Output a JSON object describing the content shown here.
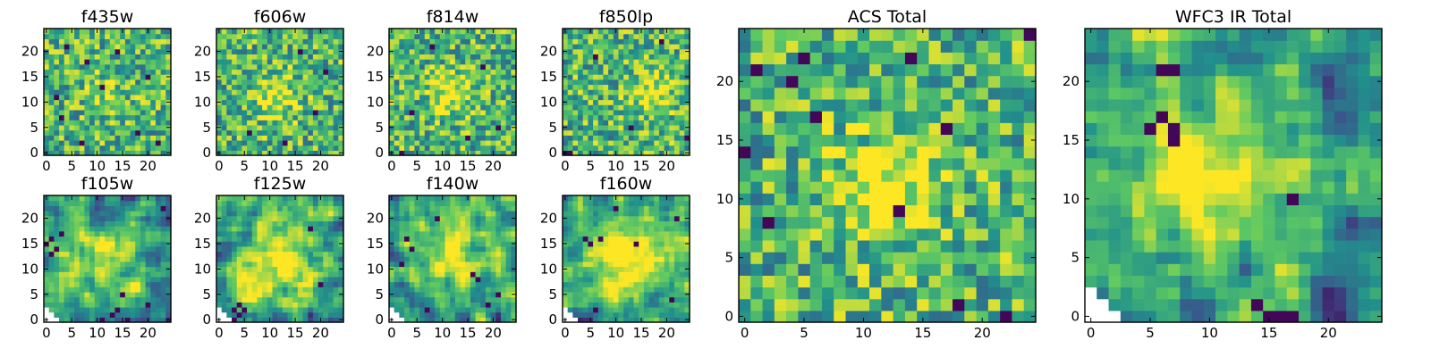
{
  "figure": {
    "description_type": "grid of heatmap image cutouts per filter",
    "colormap": [
      "#440154",
      "#3b528b",
      "#21918c",
      "#5ec962",
      "#fde725"
    ],
    "background": "#ffffff"
  },
  "chart_data": [
    {
      "type": "heatmap",
      "title": "f435w",
      "grid_size": 25,
      "xlim": [
        0,
        24
      ],
      "ylim": [
        0,
        24
      ],
      "xticks": [
        0,
        5,
        10,
        15,
        20
      ],
      "yticks": [
        0,
        5,
        10,
        15,
        20
      ],
      "pattern": "noise",
      "hotspot": [
        12,
        12,
        3
      ],
      "hotspot_strength": 0.15,
      "dark_pixels": [
        [
          8,
          18
        ],
        [
          11,
          13
        ],
        [
          4,
          21
        ],
        [
          3,
          7
        ],
        [
          18,
          4
        ],
        [
          20,
          15
        ],
        [
          14,
          20
        ],
        [
          2,
          11
        ],
        [
          22,
          2
        ],
        [
          7,
          2
        ]
      ],
      "blank_corner": false,
      "seed": 11
    },
    {
      "type": "heatmap",
      "title": "f606w",
      "grid_size": 25,
      "xlim": [
        0,
        24
      ],
      "ylim": [
        0,
        24
      ],
      "xticks": [
        0,
        5,
        10,
        15,
        20
      ],
      "yticks": [
        0,
        5,
        10,
        15,
        20
      ],
      "pattern": "noise",
      "hotspot": [
        11,
        11,
        3
      ],
      "hotspot_strength": 0.35,
      "dark_pixels": [
        [
          16,
          20
        ],
        [
          19,
          8
        ],
        [
          6,
          4
        ],
        [
          21,
          16
        ],
        [
          13,
          2
        ]
      ],
      "blank_corner": false,
      "seed": 23
    },
    {
      "type": "heatmap",
      "title": "f814w",
      "grid_size": 25,
      "xlim": [
        0,
        24
      ],
      "ylim": [
        0,
        24
      ],
      "xticks": [
        0,
        5,
        10,
        15,
        20
      ],
      "yticks": [
        0,
        5,
        10,
        15,
        20
      ],
      "pattern": "noise",
      "hotspot": [
        12,
        12,
        3
      ],
      "hotspot_strength": 0.35,
      "dark_pixels": [
        [
          18,
          17
        ],
        [
          4,
          8
        ],
        [
          21,
          5
        ],
        [
          8,
          21
        ],
        [
          2,
          0
        ],
        [
          15,
          3
        ]
      ],
      "blank_corner": false,
      "seed": 37
    },
    {
      "type": "heatmap",
      "title": "f850lp",
      "grid_size": 25,
      "xlim": [
        0,
        24
      ],
      "ylim": [
        0,
        24
      ],
      "xticks": [
        0,
        5,
        10,
        15,
        20
      ],
      "yticks": [
        0,
        5,
        10,
        15,
        20
      ],
      "pattern": "noise",
      "hotspot": [
        17,
        12,
        3
      ],
      "hotspot_strength": 0.35,
      "dark_pixels": [
        [
          0,
          0
        ],
        [
          1,
          0
        ],
        [
          24,
          3
        ],
        [
          6,
          19
        ],
        [
          13,
          5
        ],
        [
          19,
          22
        ]
      ],
      "blank_corner": false,
      "seed": 41
    },
    {
      "type": "heatmap",
      "title": "f105w",
      "grid_size": 25,
      "xlim": [
        0,
        24
      ],
      "ylim": [
        0,
        24
      ],
      "xticks": [
        0,
        5,
        10,
        15,
        20
      ],
      "yticks": [
        0,
        5,
        10,
        15,
        20
      ],
      "pattern": "smooth",
      "hotspot": [
        12,
        12,
        5
      ],
      "hotspot_strength": 0.3,
      "dark_pixels": [
        [
          0,
          15
        ],
        [
          1,
          16
        ],
        [
          2,
          14
        ],
        [
          1,
          13
        ],
        [
          3,
          17
        ],
        [
          13,
          1
        ],
        [
          14,
          2
        ],
        [
          16,
          0
        ],
        [
          11,
          0
        ],
        [
          15,
          5
        ],
        [
          20,
          3
        ],
        [
          23,
          22
        ]
      ],
      "blank_corner": true,
      "seed": 53
    },
    {
      "type": "heatmap",
      "title": "f125w",
      "grid_size": 25,
      "xlim": [
        0,
        24
      ],
      "ylim": [
        0,
        24
      ],
      "xticks": [
        0,
        5,
        10,
        15,
        20
      ],
      "yticks": [
        0,
        5,
        10,
        15,
        20
      ],
      "pattern": "smooth",
      "hotspot": [
        11,
        12,
        6
      ],
      "hotspot_strength": 0.45,
      "dark_pixels": [
        [
          3,
          2
        ],
        [
          4,
          1
        ],
        [
          5,
          2
        ],
        [
          4,
          3
        ],
        [
          3,
          0
        ],
        [
          20,
          7
        ],
        [
          18,
          18
        ]
      ],
      "blank_corner": true,
      "seed": 67
    },
    {
      "type": "heatmap",
      "title": "f140w",
      "grid_size": 25,
      "xlim": [
        0,
        24
      ],
      "ylim": [
        0,
        24
      ],
      "xticks": [
        0,
        5,
        10,
        15,
        20
      ],
      "yticks": [
        0,
        5,
        10,
        15,
        20
      ],
      "pattern": "smooth",
      "hotspot": [
        12,
        13,
        5
      ],
      "hotspot_strength": 0.45,
      "dark_pixels": [
        [
          3,
          16
        ],
        [
          4,
          14
        ],
        [
          2,
          11
        ],
        [
          7,
          2
        ],
        [
          16,
          9
        ],
        [
          17,
          8
        ],
        [
          21,
          5
        ],
        [
          9,
          20
        ],
        [
          19,
          3
        ]
      ],
      "blank_corner": true,
      "seed": 79
    },
    {
      "type": "heatmap",
      "title": "f160w",
      "grid_size": 25,
      "xlim": [
        0,
        24
      ],
      "ylim": [
        0,
        24
      ],
      "xticks": [
        0,
        5,
        10,
        15,
        20
      ],
      "yticks": [
        0,
        5,
        10,
        15,
        20
      ],
      "pattern": "smooth",
      "hotspot": [
        12,
        13,
        5
      ],
      "hotspot_strength": 0.45,
      "dark_pixels": [
        [
          4,
          16
        ],
        [
          5,
          15
        ],
        [
          7,
          16
        ],
        [
          14,
          15
        ],
        [
          6,
          2
        ],
        [
          21,
          4
        ],
        [
          22,
          20
        ],
        [
          10,
          22
        ]
      ],
      "blank_corner": true,
      "seed": 97
    },
    {
      "type": "heatmap",
      "title": "ACS Total",
      "grid_size": 25,
      "xlim": [
        0,
        24
      ],
      "ylim": [
        0,
        24
      ],
      "xticks": [
        0,
        5,
        10,
        15,
        20
      ],
      "yticks": [
        0,
        5,
        10,
        15,
        20
      ],
      "pattern": "noise",
      "hotspot": [
        12,
        11,
        3
      ],
      "hotspot_strength": 0.4,
      "dark_pixels": [
        [
          24,
          24
        ],
        [
          1,
          21
        ],
        [
          4,
          20
        ],
        [
          5,
          22
        ],
        [
          6,
          17
        ],
        [
          14,
          22
        ],
        [
          2,
          8
        ],
        [
          18,
          1
        ],
        [
          22,
          0
        ],
        [
          17,
          16
        ],
        [
          13,
          9
        ],
        [
          0,
          14
        ]
      ],
      "blank_corner": false,
      "seed": 113
    },
    {
      "type": "heatmap",
      "title": "WFC3 IR Total",
      "grid_size": 25,
      "xlim": [
        0,
        24
      ],
      "ylim": [
        0,
        24
      ],
      "xticks": [
        0,
        5,
        10,
        15,
        20
      ],
      "yticks": [
        0,
        5,
        10,
        15,
        20
      ],
      "pattern": "smooth",
      "hotspot": [
        11,
        12,
        5
      ],
      "hotspot_strength": 0.5,
      "dark_pixels": [
        [
          6,
          21
        ],
        [
          7,
          21
        ],
        [
          5,
          16
        ],
        [
          6,
          17
        ],
        [
          7,
          15
        ],
        [
          7,
          16
        ],
        [
          17,
          10
        ],
        [
          15,
          0
        ],
        [
          16,
          0
        ],
        [
          17,
          0
        ],
        [
          14,
          1
        ]
      ],
      "blank_corner": true,
      "seed": 131
    }
  ]
}
